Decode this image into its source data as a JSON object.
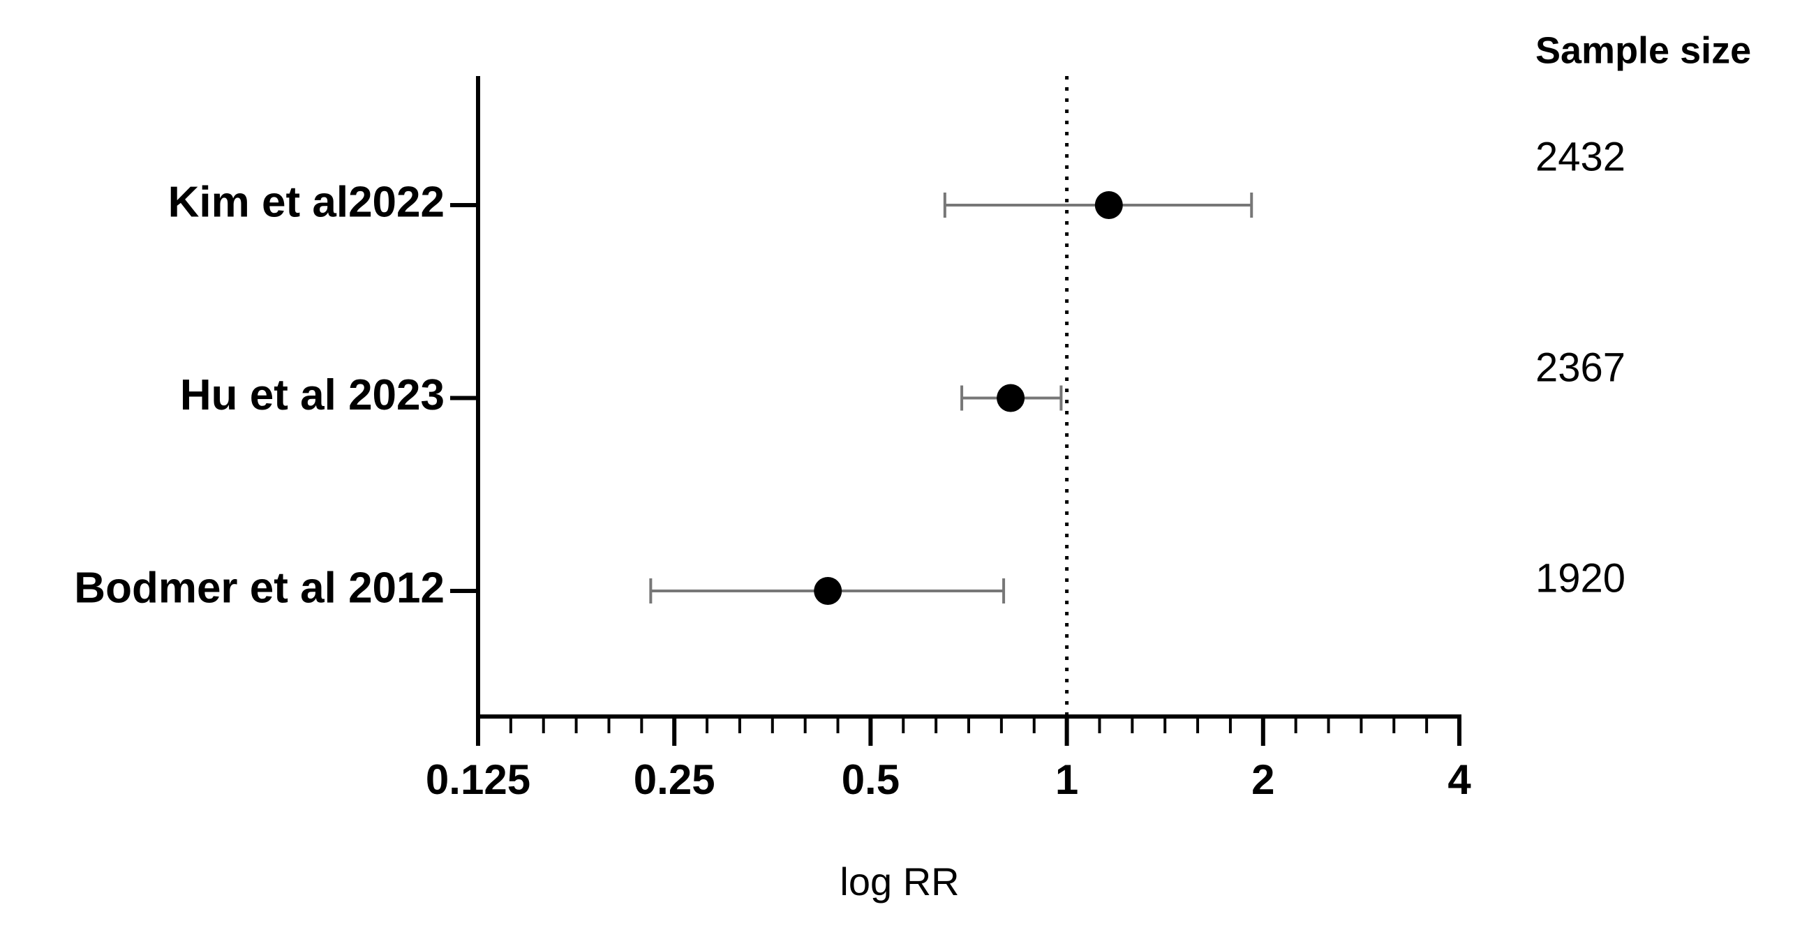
{
  "chart_data": {
    "type": "forest",
    "categories": [
      "Kim et al2022",
      "Hu et al 2023",
      "Bodmer et al 2012"
    ],
    "values": [
      1.16,
      0.82,
      0.43
    ],
    "lower": [
      0.65,
      0.69,
      0.23
    ],
    "upper": [
      1.92,
      0.98,
      0.8
    ],
    "marker_color": "#000000",
    "error_color": "#777777",
    "x_label": "log RR",
    "x_scale": "log2",
    "xlim": [
      0.125,
      4
    ],
    "xticks": [
      0.125,
      0.25,
      0.5,
      1,
      2,
      4
    ],
    "reference_line": 1,
    "sample_size_title": "Sample size",
    "sample_sizes": [
      2432,
      2367,
      1920
    ]
  }
}
